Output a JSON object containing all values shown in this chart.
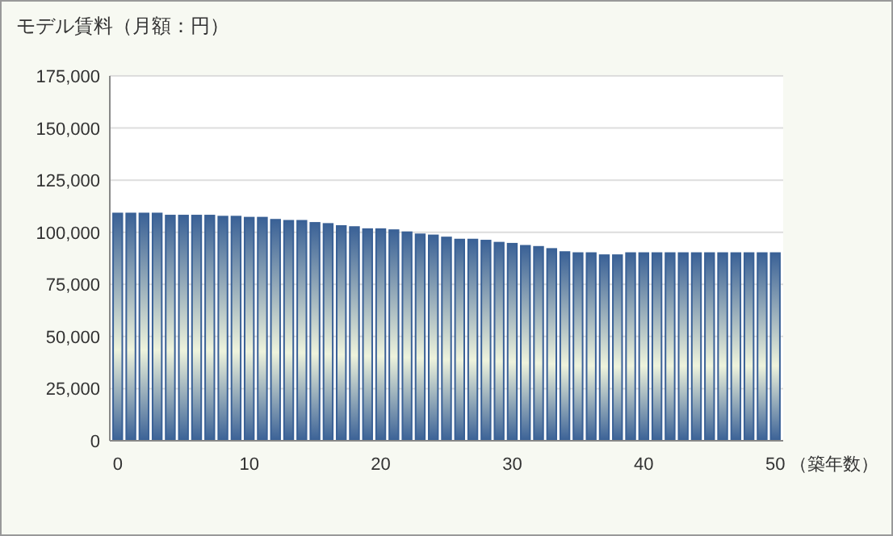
{
  "chart_data": {
    "type": "bar",
    "title": "モデル賃料（月額：円）",
    "xlabel": "（築年数）",
    "x": [
      0,
      1,
      2,
      3,
      4,
      5,
      6,
      7,
      8,
      9,
      10,
      11,
      12,
      13,
      14,
      15,
      16,
      17,
      18,
      19,
      20,
      21,
      22,
      23,
      24,
      25,
      26,
      27,
      28,
      29,
      30,
      31,
      32,
      33,
      34,
      35,
      36,
      37,
      38,
      39,
      40,
      41,
      42,
      43,
      44,
      45,
      46,
      47,
      48,
      49,
      50
    ],
    "values": [
      109000,
      109000,
      109000,
      109000,
      108000,
      108000,
      108000,
      108000,
      107500,
      107500,
      107000,
      107000,
      106000,
      105500,
      105500,
      104500,
      104000,
      103000,
      102500,
      101500,
      101500,
      101000,
      100000,
      99000,
      98500,
      97500,
      96500,
      96500,
      96000,
      95000,
      94500,
      93500,
      93000,
      92000,
      90500,
      90000,
      90000,
      89000,
      89000,
      90000,
      90000,
      90000,
      90000,
      90000,
      90000,
      90000,
      90000,
      90000,
      90000,
      90000,
      90000
    ],
    "color": "#3a6196",
    "xlim": [
      -0.6,
      50.6
    ],
    "xticks": [
      0,
      10,
      20,
      30,
      40,
      50
    ],
    "ylim": [
      0,
      175000
    ],
    "yticks": [
      {
        "value": 0,
        "label": "0"
      },
      {
        "value": 25000,
        "label": "25,000"
      },
      {
        "value": 50000,
        "label": "50,000"
      },
      {
        "value": 75000,
        "label": "75,000"
      },
      {
        "value": 100000,
        "label": "100,000"
      },
      {
        "value": 125000,
        "label": "125,000"
      },
      {
        "value": 150000,
        "label": "150,000"
      },
      {
        "value": 175000,
        "label": "175,000"
      }
    ],
    "grid": "y"
  }
}
